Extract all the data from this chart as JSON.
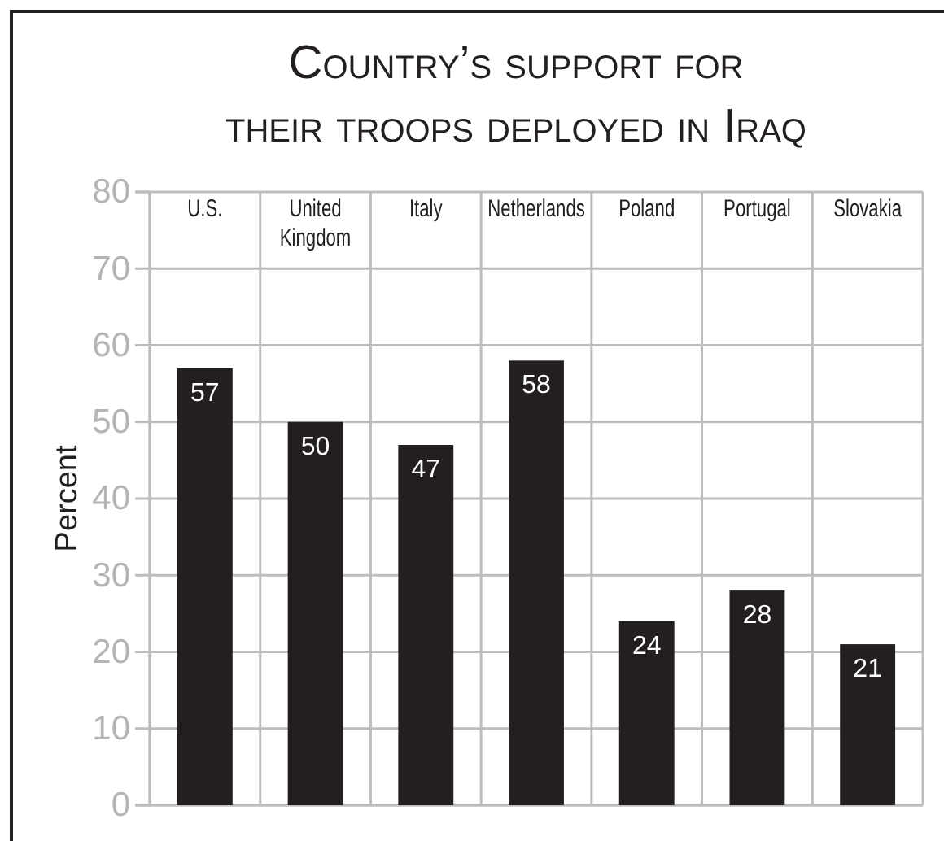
{
  "chart_data": {
    "type": "bar",
    "title": "Country’s support for\ntheir troops deployed in Iraq",
    "ylabel": "Percent",
    "categories": [
      "U.S.",
      "United Kingdom",
      "Italy",
      "Netherlands",
      "Poland",
      "Portugal",
      "Slovakia"
    ],
    "values": [
      57,
      50,
      47,
      58,
      24,
      28,
      21
    ],
    "color": "#231f20",
    "ylim": [
      0,
      80
    ],
    "yticks": [
      0,
      10,
      20,
      30,
      40,
      50,
      60,
      70,
      80
    ],
    "grid": true,
    "data_labels": true
  }
}
